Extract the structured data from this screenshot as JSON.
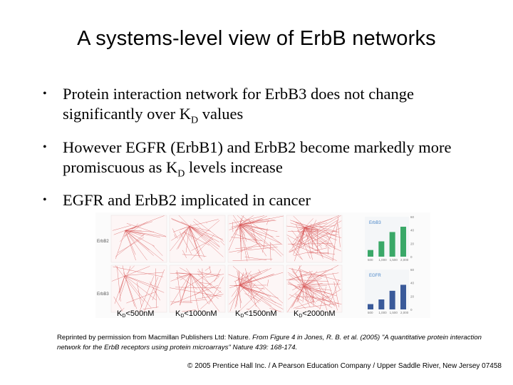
{
  "title": "A systems-level view of ErbB networks",
  "bullets": [
    {
      "text": "Protein interaction network for ErbB3 does not change significantly over K",
      "sub": "D",
      "tail": " values"
    },
    {
      "text": "However EGFR (ErbB1) and ErbB2 become markedly more promiscuous as K",
      "sub": "D",
      "tail": " levels increase"
    },
    {
      "text": "EGFR and ErbB2 implicated in cancer",
      "sub": "",
      "tail": ""
    }
  ],
  "figure": {
    "row_labels": [
      "ErbB2",
      "ErbB3"
    ],
    "kd_labels": [
      {
        "k": "K",
        "sub": "D",
        "rest": "<500nM"
      },
      {
        "k": "K",
        "sub": "D",
        "rest": "<1000nM"
      },
      {
        "k": "K",
        "sub": "D",
        "rest": "<1500nM"
      },
      {
        "k": "K",
        "sub": "D",
        "rest": "<2000nM"
      }
    ],
    "network_color": "#d85858",
    "chart_top": {
      "label": "ErbB3",
      "color": "#3aa868",
      "values": [
        10,
        23,
        37,
        45
      ],
      "categories": [
        "500",
        "1,000",
        "1,500",
        "2,000"
      ],
      "yticks": [
        "0",
        "20",
        "40",
        "60"
      ]
    },
    "chart_bottom": {
      "label": "EGFR",
      "color": "#3a5a9a",
      "values": [
        8,
        15,
        28,
        37
      ],
      "categories": [
        "500",
        "1,000",
        "1,500",
        "2,000"
      ],
      "yticks": [
        "0",
        "20",
        "40",
        "60"
      ]
    }
  },
  "credit": {
    "plain": "Reprinted by permission from Macmillan Publishers Ltd: Nature. ",
    "italic": "From Figure 4 in Jones, R. B. et al. (2005) \"A quantitative protein interaction network for the ErbB receptors using protein microarrays\" Nature 439: 168-174."
  },
  "copyright": "© 2005 Prentice Hall Inc. / A Pearson Education Company / Upper Saddle River, New Jersey 07458"
}
